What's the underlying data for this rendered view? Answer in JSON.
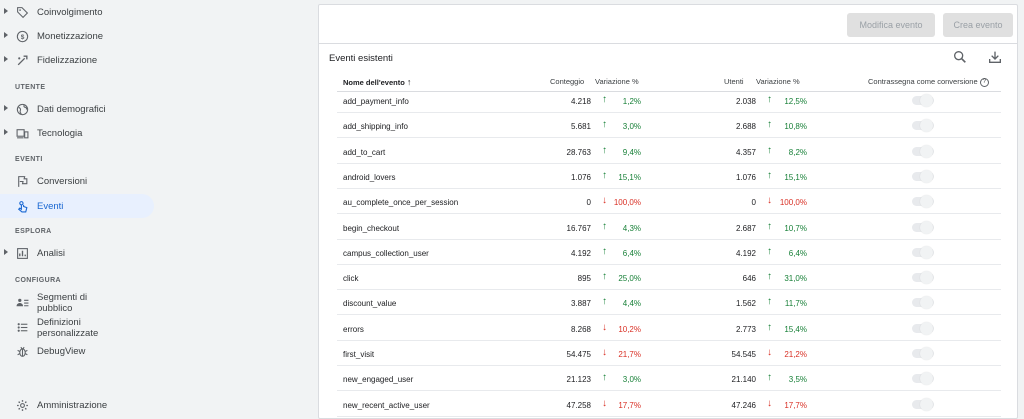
{
  "sidebar": {
    "items_top": [
      {
        "label": "Coinvolgimento",
        "icon": "tag-icon"
      },
      {
        "label": "Monetizzazione",
        "icon": "dollar-circle-icon"
      },
      {
        "label": "Fidelizzazione",
        "icon": "retention-icon"
      }
    ],
    "section_utente": "UTENTE",
    "items_utente": [
      {
        "label": "Dati demografici",
        "icon": "globe-icon"
      },
      {
        "label": "Tecnologia",
        "icon": "devices-icon"
      }
    ],
    "section_eventi": "EVENTI",
    "items_eventi": [
      {
        "label": "Conversioni",
        "icon": "flag-icon"
      },
      {
        "label": "Eventi",
        "icon": "touch-icon"
      }
    ],
    "section_esplora": "ESPLORA",
    "items_esplora": [
      {
        "label": "Analisi",
        "icon": "analysis-icon"
      }
    ],
    "section_configura": "CONFIGURA",
    "items_configura": [
      {
        "label_line1": "Segmenti di",
        "label_line2": "pubblico",
        "icon": "audience-icon"
      },
      {
        "label_line1": "Definizioni",
        "label_line2": "personalizzate",
        "icon": "custom-definitions-icon"
      },
      {
        "label": "DebugView",
        "icon": "debug-icon"
      }
    ],
    "admin": {
      "label": "Amministrazione",
      "icon": "gear-icon"
    }
  },
  "toolbar": {
    "edit_label": "Modifica evento",
    "create_label": "Crea evento"
  },
  "card": {
    "title": "Eventi esistenti",
    "search_icon": "search-icon",
    "download_icon": "download-icon"
  },
  "table": {
    "headers": {
      "name": "Nome dell'evento",
      "count": "Conteggio",
      "count_change": "Variazione %",
      "users": "Utenti",
      "users_change": "Variazione %",
      "conversion": "Contrassegna come conversione"
    },
    "rows": [
      {
        "name": "add_payment_info",
        "count": "4.218",
        "count_dir": "up",
        "count_pct": "1,2%",
        "users": "2.038",
        "users_dir": "up",
        "users_pct": "12,5%"
      },
      {
        "name": "add_shipping_info",
        "count": "5.681",
        "count_dir": "up",
        "count_pct": "3,0%",
        "users": "2.688",
        "users_dir": "up",
        "users_pct": "10,8%"
      },
      {
        "name": "add_to_cart",
        "count": "28.763",
        "count_dir": "up",
        "count_pct": "9,4%",
        "users": "4.357",
        "users_dir": "up",
        "users_pct": "8,2%"
      },
      {
        "name": "android_lovers",
        "count": "1.076",
        "count_dir": "up",
        "count_pct": "15,1%",
        "users": "1.076",
        "users_dir": "up",
        "users_pct": "15,1%"
      },
      {
        "name": "au_complete_once_per_session",
        "count": "0",
        "count_dir": "down",
        "count_pct": "100,0%",
        "users": "0",
        "users_dir": "down",
        "users_pct": "100,0%"
      },
      {
        "name": "begin_checkout",
        "count": "16.767",
        "count_dir": "up",
        "count_pct": "4,3%",
        "users": "2.687",
        "users_dir": "up",
        "users_pct": "10,7%"
      },
      {
        "name": "campus_collection_user",
        "count": "4.192",
        "count_dir": "up",
        "count_pct": "6,4%",
        "users": "4.192",
        "users_dir": "up",
        "users_pct": "6,4%"
      },
      {
        "name": "click",
        "count": "895",
        "count_dir": "up",
        "count_pct": "25,0%",
        "users": "646",
        "users_dir": "up",
        "users_pct": "31,0%"
      },
      {
        "name": "discount_value",
        "count": "3.887",
        "count_dir": "up",
        "count_pct": "4,4%",
        "users": "1.562",
        "users_dir": "up",
        "users_pct": "11,7%"
      },
      {
        "name": "errors",
        "count": "8.268",
        "count_dir": "down",
        "count_pct": "10,2%",
        "users": "2.773",
        "users_dir": "up",
        "users_pct": "15,4%"
      },
      {
        "name": "first_visit",
        "count": "54.475",
        "count_dir": "down",
        "count_pct": "21,7%",
        "users": "54.545",
        "users_dir": "down",
        "users_pct": "21,2%"
      },
      {
        "name": "new_engaged_user",
        "count": "21.123",
        "count_dir": "up",
        "count_pct": "3,0%",
        "users": "21.140",
        "users_dir": "up",
        "users_pct": "3,5%"
      },
      {
        "name": "new_recent_active_user",
        "count": "47.258",
        "count_dir": "down",
        "count_pct": "17,7%",
        "users": "47.246",
        "users_dir": "down",
        "users_pct": "17,7%"
      }
    ]
  },
  "colors": {
    "up": "#188038",
    "down": "#d93025",
    "active_nav": "#1967d2"
  }
}
